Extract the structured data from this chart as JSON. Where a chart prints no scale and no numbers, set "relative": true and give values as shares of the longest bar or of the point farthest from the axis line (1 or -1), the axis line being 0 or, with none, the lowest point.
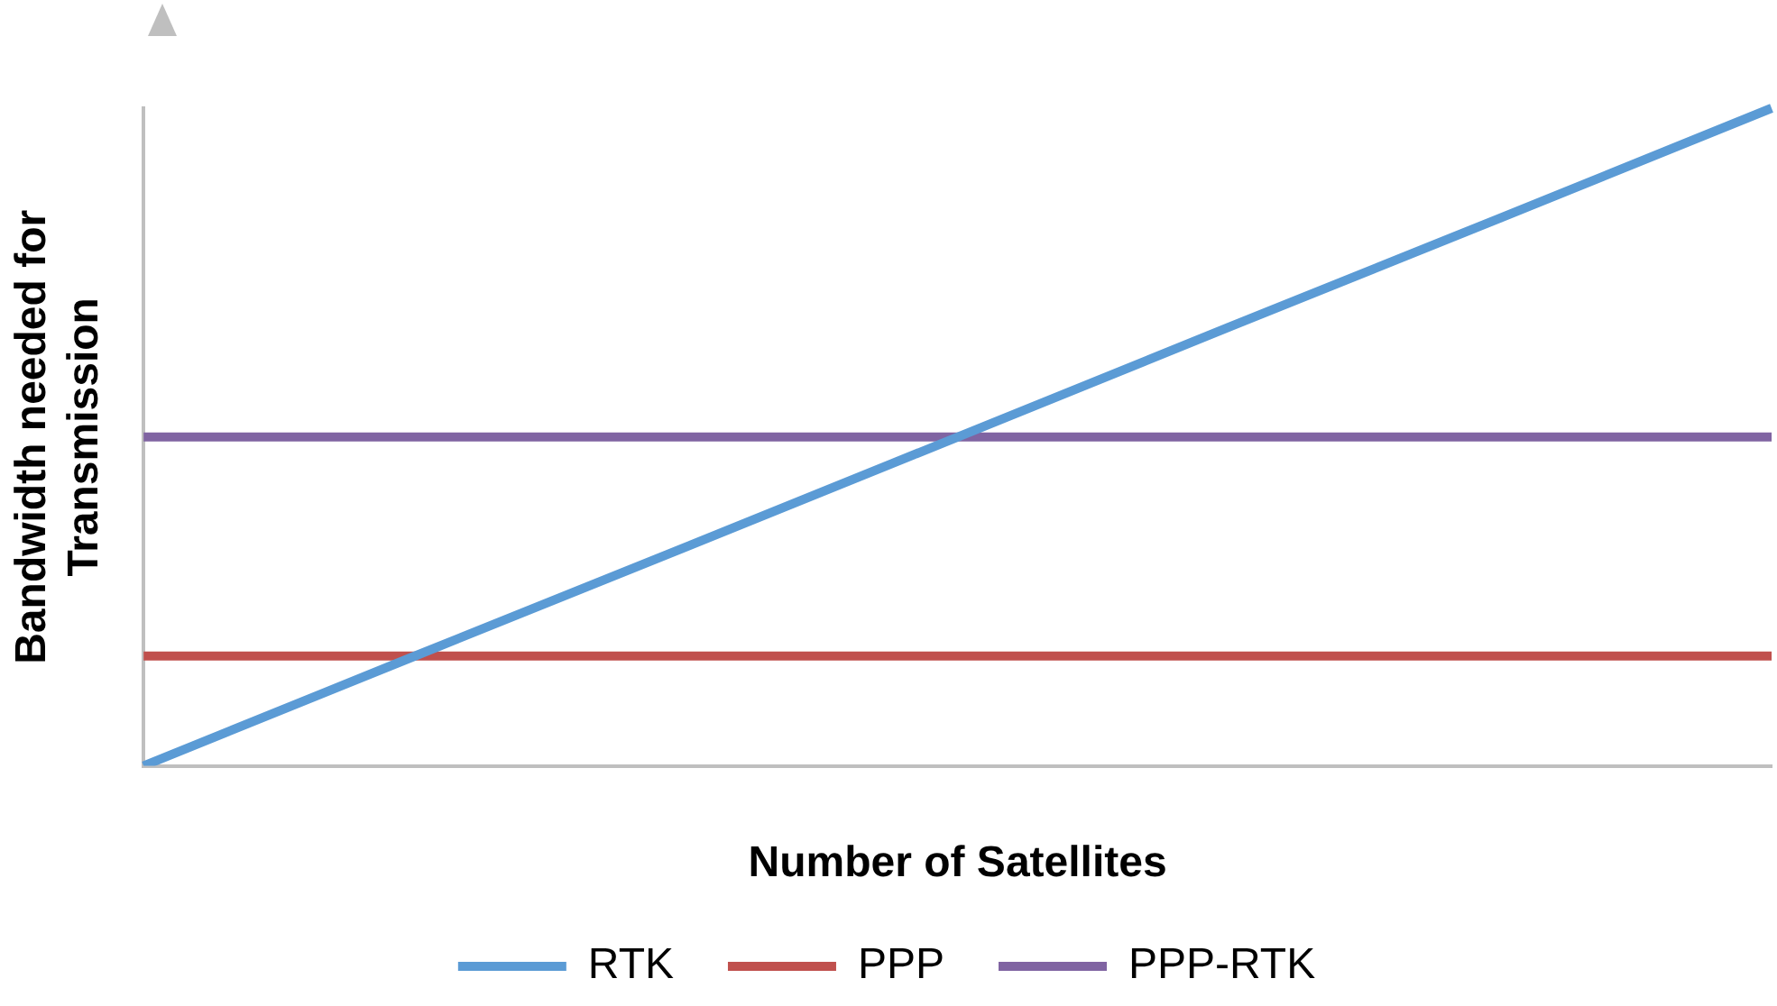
{
  "chart_data": {
    "type": "line",
    "relative": true,
    "xlabel": "Number of Satellites",
    "ylabel": "Bandwidth needed for Transmission",
    "categories": [
      null,
      null,
      null,
      null,
      null,
      null,
      null
    ],
    "legend": "bottom",
    "marker": "none",
    "grid": false,
    "series": [
      {
        "name": "RTK",
        "color": "#5b9bd5",
        "values": [
          0,
          0.167,
          0.333,
          0.5,
          0.667,
          0.833,
          1
        ]
      },
      {
        "name": "PPP",
        "color": "#c0504d",
        "values": [
          0.167,
          0.167,
          0.167,
          0.167,
          0.167,
          0.167,
          0.167
        ]
      },
      {
        "name": "PPP-RTK",
        "color": "#8064a2",
        "values": [
          0.5,
          0.5,
          0.5,
          0.5,
          0.5,
          0.5,
          0.5
        ]
      }
    ]
  }
}
